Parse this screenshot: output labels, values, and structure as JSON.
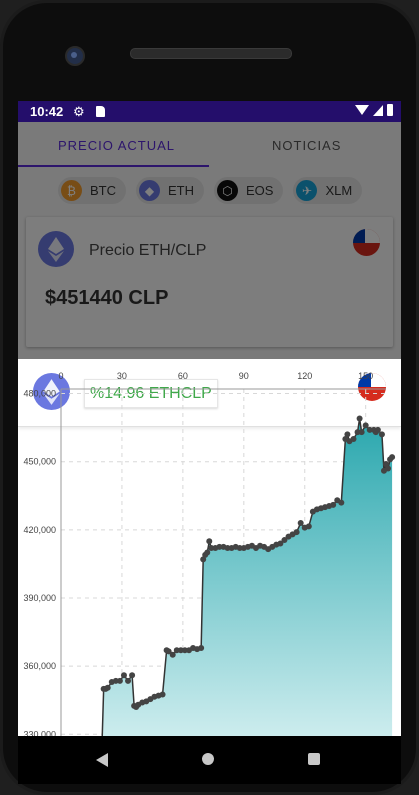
{
  "status_bar": {
    "time": "10:42",
    "icons": [
      "gear-icon",
      "sd-card-icon",
      "wifi-icon",
      "signal-icon",
      "battery-icon"
    ]
  },
  "tabs": [
    {
      "label": "PRECIO ACTUAL",
      "selected": true
    },
    {
      "label": "NOTICIAS",
      "selected": false
    }
  ],
  "coins": [
    {
      "label": "BTC",
      "icon": "bitcoin-icon",
      "color": "#f09a2d",
      "glyph": "₿"
    },
    {
      "label": "ETH",
      "icon": "ethereum-icon",
      "color": "#6b78e0",
      "glyph": "◆"
    },
    {
      "label": "EOS",
      "icon": "eos-icon",
      "color": "#111111",
      "glyph": "⬡"
    },
    {
      "label": "XLM",
      "icon": "stellar-icon",
      "color": "#17a3d8",
      "glyph": "✈"
    }
  ],
  "price_card": {
    "title": "Precio ETH/CLP",
    "price": "$451440 CLP",
    "flag": "chile-flag-icon"
  },
  "sheet": {
    "change_label": "%14.96 ETHCLP",
    "change_color": "#3fa84a",
    "flag": "chile-flag-icon"
  },
  "chart_data": {
    "type": "area",
    "title": "",
    "xlabel": "",
    "ylabel": "",
    "x_axis_position": "top",
    "xlim": [
      0,
      160
    ],
    "ylim": [
      320000,
      482000
    ],
    "x_ticks": [
      0,
      30,
      60,
      90,
      120,
      150
    ],
    "x_tick_labels": [
      "0",
      "30",
      "60",
      "90",
      "120",
      "150"
    ],
    "y_ticks": [
      330000,
      360000,
      390000,
      420000,
      450000,
      480000
    ],
    "y_tick_labels": [
      "330,000",
      "360,000",
      "390,000",
      "420,000",
      "450,000",
      "480,000"
    ],
    "grid": true,
    "color": "#2aa7ae",
    "points": [
      [
        20,
        320000
      ],
      [
        21,
        350000
      ],
      [
        22,
        350000
      ],
      [
        23,
        350500
      ],
      [
        25,
        353000
      ],
      [
        27,
        353500
      ],
      [
        29,
        353500
      ],
      [
        31,
        356000
      ],
      [
        33,
        353500
      ],
      [
        35,
        356000
      ],
      [
        36,
        342500
      ],
      [
        37,
        342000
      ],
      [
        38,
        343000
      ],
      [
        40,
        344000
      ],
      [
        42,
        344500
      ],
      [
        44,
        345500
      ],
      [
        46,
        346500
      ],
      [
        48,
        347000
      ],
      [
        50,
        347500
      ],
      [
        52,
        367000
      ],
      [
        53,
        366500
      ],
      [
        55,
        365000
      ],
      [
        57,
        367000
      ],
      [
        59,
        367000
      ],
      [
        61,
        367000
      ],
      [
        63,
        367000
      ],
      [
        65,
        368000
      ],
      [
        67,
        367500
      ],
      [
        69,
        368000
      ],
      [
        70,
        407000
      ],
      [
        71,
        409000
      ],
      [
        72,
        410000
      ],
      [
        73,
        415000
      ],
      [
        74,
        412000
      ],
      [
        76,
        412000
      ],
      [
        78,
        412500
      ],
      [
        80,
        412500
      ],
      [
        82,
        412000
      ],
      [
        84,
        412000
      ],
      [
        86,
        412500
      ],
      [
        88,
        412000
      ],
      [
        90,
        412000
      ],
      [
        92,
        412500
      ],
      [
        94,
        413000
      ],
      [
        96,
        412000
      ],
      [
        98,
        413000
      ],
      [
        100,
        412500
      ],
      [
        102,
        411500
      ],
      [
        104,
        412500
      ],
      [
        106,
        413500
      ],
      [
        108,
        414000
      ],
      [
        110,
        415500
      ],
      [
        112,
        417000
      ],
      [
        114,
        418000
      ],
      [
        116,
        419000
      ],
      [
        118,
        423000
      ],
      [
        120,
        421000
      ],
      [
        122,
        421500
      ],
      [
        124,
        428000
      ],
      [
        126,
        429000
      ],
      [
        128,
        429500
      ],
      [
        130,
        430000
      ],
      [
        132,
        430500
      ],
      [
        134,
        431000
      ],
      [
        136,
        433000
      ],
      [
        138,
        432000
      ],
      [
        140,
        460000
      ],
      [
        141,
        462000
      ],
      [
        142,
        459000
      ],
      [
        144,
        460000
      ],
      [
        146,
        463000
      ],
      [
        147,
        469000
      ],
      [
        148,
        463000
      ],
      [
        150,
        466000
      ],
      [
        152,
        464000
      ],
      [
        154,
        464000
      ],
      [
        155,
        463000
      ],
      [
        156,
        464000
      ],
      [
        158,
        462000
      ],
      [
        159,
        446000
      ],
      [
        160,
        449000
      ],
      [
        161,
        447000
      ],
      [
        162,
        451000
      ],
      [
        163,
        452000
      ]
    ]
  }
}
